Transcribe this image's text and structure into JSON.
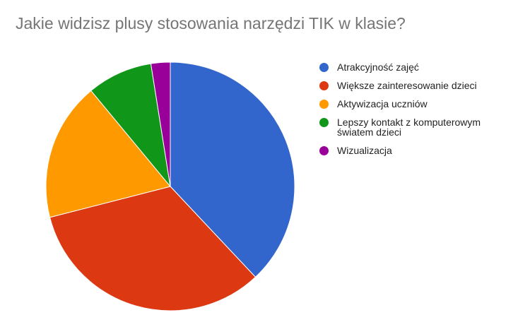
{
  "chart_data": {
    "type": "pie",
    "title": "Jakie widzisz plusy stosowania narzędzi TIK w klasie?",
    "categories": [
      "Atrakcyjność zajęć",
      "Większe zainteresowanie dzieci",
      "Aktywizacja uczniów",
      "Lepszy kontakt z komputerowym światem dzieci",
      "Wizualizacja"
    ],
    "values": [
      38,
      33,
      18,
      8.5,
      2.5
    ],
    "colors": [
      "#3366cc",
      "#dc3912",
      "#ff9900",
      "#109618",
      "#990099"
    ],
    "legend_position": "right",
    "legend_lines": [
      [
        "Atrakcyjność zajęć"
      ],
      [
        "Większe zainteresowanie dzieci"
      ],
      [
        "Aktywizacja uczniów"
      ],
      [
        "Lepszy kontakt z komputerowym",
        "światem dzieci"
      ],
      [
        "Wizualizacja"
      ]
    ]
  }
}
